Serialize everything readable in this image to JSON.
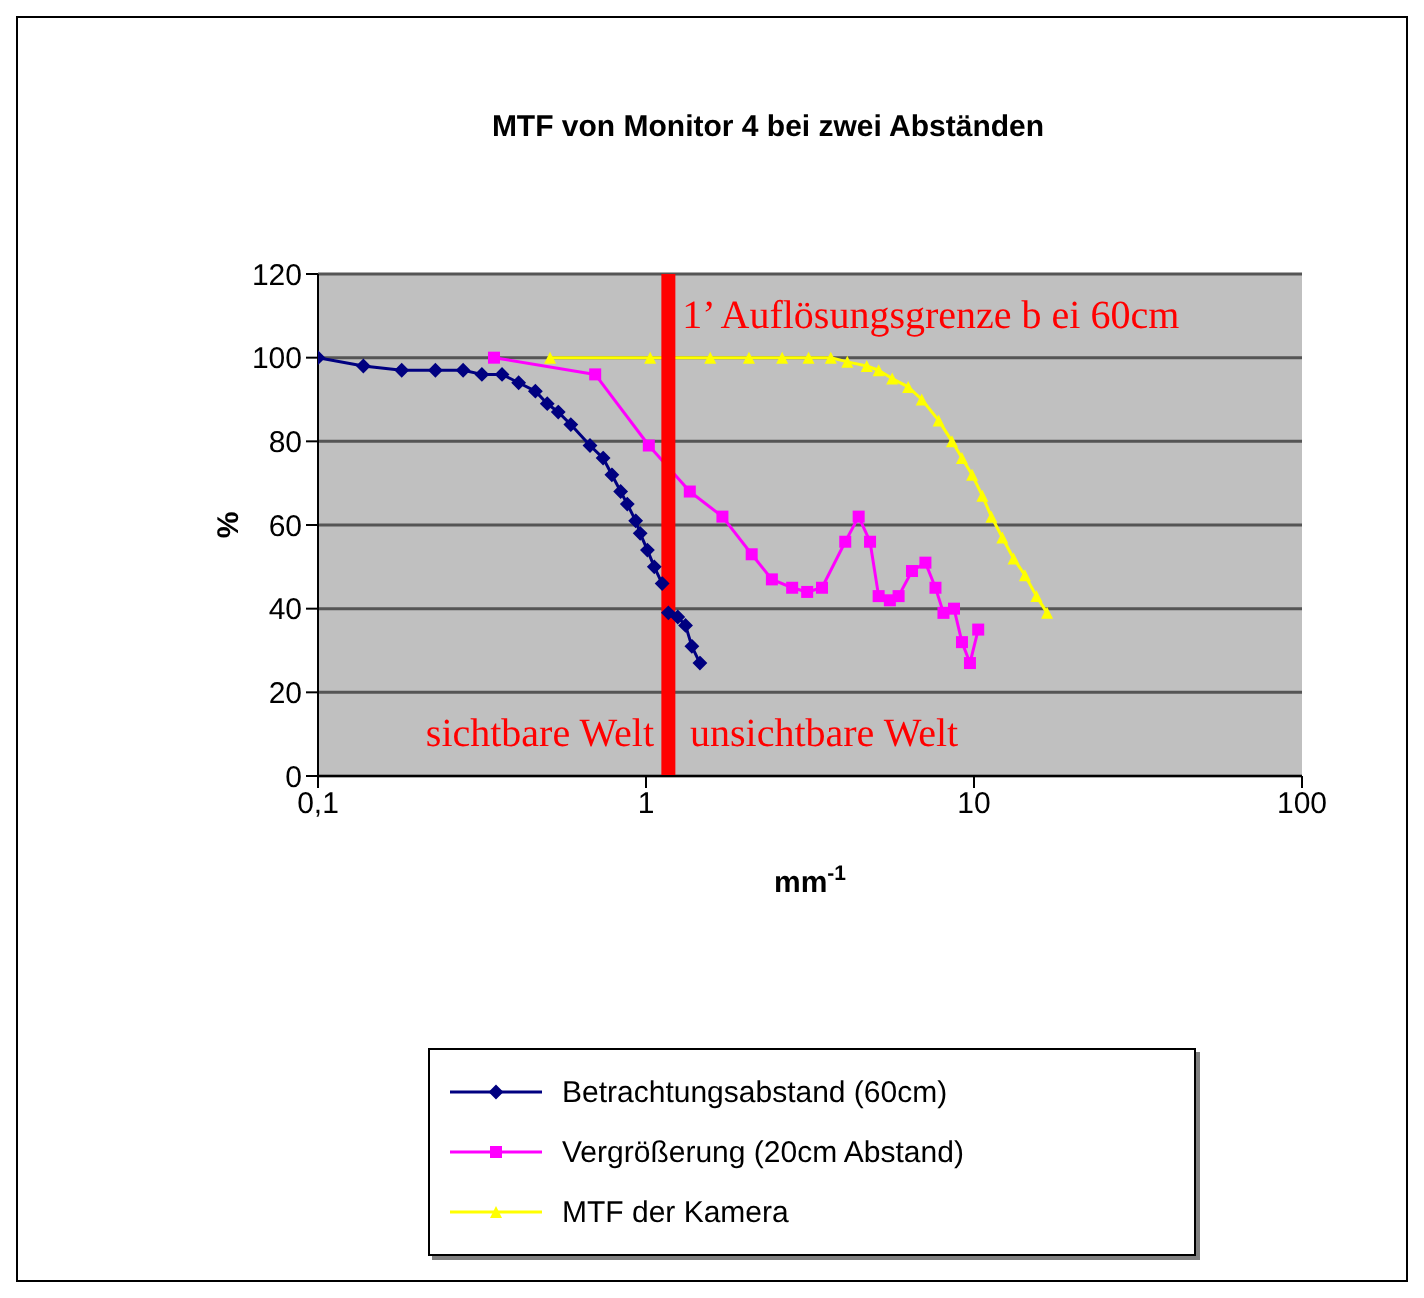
{
  "chart_data": {
    "type": "line",
    "title": "MTF von Monitor 4 bei zwei Abständen",
    "xlabel": "mm$^{-1}$",
    "ylabel": "%",
    "log": "x",
    "xlim": [
      0.1,
      100
    ],
    "xticks": [
      {
        "value": 0.1,
        "label": "0,1"
      },
      1,
      10,
      100
    ],
    "ylim": [
      0,
      120
    ],
    "yticks": [
      0,
      20,
      40,
      60,
      80,
      100,
      120
    ],
    "grid": "y",
    "legend": "bottom",
    "series": [
      {
        "name": "Betrachtungsabstand (60cm)",
        "color": "#000080",
        "marker": "diamond",
        "x": [
          0.1,
          0.1375,
          0.18,
          0.228,
          0.277,
          0.316,
          0.364,
          0.409,
          0.46,
          0.5,
          0.54,
          0.59,
          0.675,
          0.74,
          0.787,
          0.837,
          0.877,
          0.93,
          0.96,
          1.01,
          1.06,
          1.12,
          1.17,
          1.25,
          1.32,
          1.38,
          1.46
        ],
        "values": [
          100,
          98,
          97,
          97,
          97,
          96,
          96,
          94,
          92,
          89,
          87,
          84,
          79,
          76,
          72,
          68,
          65,
          61,
          58,
          54,
          50,
          46,
          39,
          38,
          36,
          31,
          27
        ]
      },
      {
        "name": "Vergrößerung (20cm Abstand)",
        "color": "#ff00ff",
        "marker": "square",
        "x": [
          0.344,
          0.7,
          1.02,
          1.36,
          1.71,
          2.1,
          2.42,
          2.79,
          3.1,
          3.44,
          4.05,
          4.45,
          4.82,
          5.12,
          5.54,
          5.89,
          6.47,
          7.11,
          7.63,
          8.07,
          8.69,
          9.19,
          9.72,
          10.3
        ],
        "values": [
          100,
          96,
          79,
          68,
          62,
          53,
          47,
          45,
          44,
          45,
          56,
          62,
          56,
          43,
          42,
          43,
          49,
          51,
          45,
          39,
          40,
          32,
          27,
          35
        ]
      },
      {
        "name": "MTF der Kamera",
        "color": "#ffff00",
        "marker": "triangle",
        "x": [
          0.51,
          1.03,
          1.57,
          2.06,
          2.6,
          3.13,
          3.66,
          4.11,
          4.71,
          5.12,
          5.63,
          6.3,
          6.93,
          7.8,
          8.57,
          9.19,
          9.87,
          10.6,
          11.3,
          12.2,
          13.2,
          14.3,
          15.5,
          16.7
        ],
        "values": [
          100,
          100,
          100,
          100,
          100,
          100,
          100,
          99,
          98,
          97,
          95,
          93,
          90,
          85,
          80,
          76,
          72,
          67,
          62,
          57,
          52,
          48,
          43,
          39
        ]
      }
    ],
    "ref_lines": [
      {
        "axis": "x",
        "value": 1.17,
        "color": "#ff0000",
        "label": "1’ Auflösungsgrenze b ei  60cm"
      }
    ],
    "annotations": [
      "sichtbare Welt",
      "unsichtbare Welt"
    ]
  }
}
